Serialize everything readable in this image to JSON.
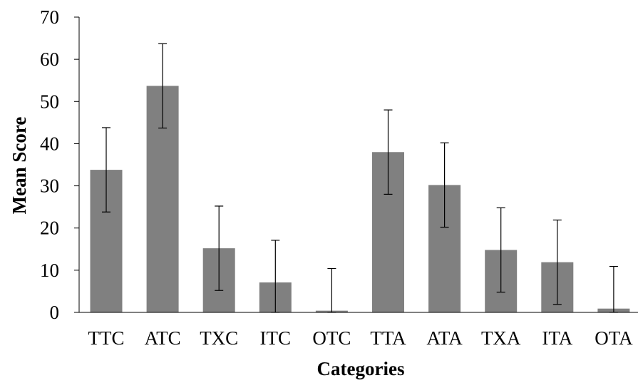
{
  "chart_data": {
    "type": "bar",
    "title": "",
    "xlabel": "Categories",
    "ylabel": "Mean Score",
    "categories": [
      "TTC",
      "ATC",
      "TXC",
      "ITC",
      "OTC",
      "TTA",
      "ATA",
      "TXA",
      "ITA",
      "OTA"
    ],
    "values": [
      33.8,
      53.7,
      15.2,
      7.1,
      0.4,
      38.0,
      30.2,
      14.8,
      11.9,
      0.9
    ],
    "error": [
      10,
      10,
      10,
      10,
      10,
      10,
      10,
      10,
      10,
      10
    ],
    "ylim": [
      0,
      70
    ],
    "yticks": [
      0,
      10,
      20,
      30,
      40,
      50,
      60,
      70
    ],
    "bar_color": "#808080",
    "grid": false,
    "legend": "none"
  }
}
